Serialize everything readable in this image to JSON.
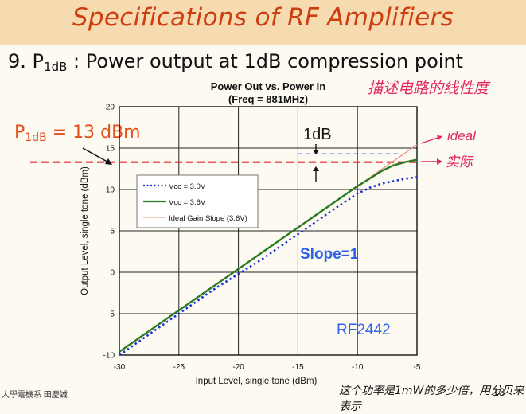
{
  "slide": {
    "title": "Specifications of RF Amplifiers",
    "heading_number": "9.",
    "heading_symbol": "P",
    "heading_sub": "1dB",
    "heading_text": ": Power output at 1dB compression point",
    "p1db_symbol": "P",
    "p1db_sub": "1dB",
    "p1db_value": "= 13 dBm",
    "note_top": "描述电路的线性度",
    "note_bottom": "这个功率是1mW的多少倍，用分贝来表示",
    "footer_left": "大學電機系 田慶誠",
    "page_number": "13"
  },
  "annotations": {
    "one_db": "1dB",
    "slope": "Slope=1",
    "part": "RF2442",
    "ideal": "ideal",
    "actual": "实际"
  },
  "colors": {
    "vcc30": "#1a2fd6",
    "vcc36": "#2a7a24",
    "ideal": "#e58c84",
    "red_dash": "#e12a2a",
    "blue_dash": "#2a4fe6",
    "accent": "#e6501c",
    "slope_text": "#2f62e8",
    "part_text": "#2f62e8"
  },
  "chart_data": {
    "type": "line",
    "title": "Power Out vs. Power In",
    "subtitle": "(Freq = 881MHz)",
    "xlabel": "Input Level, single tone (dBm)",
    "ylabel": "Output Level, single tone (dBm)",
    "xlim": [
      -30,
      -5
    ],
    "ylim": [
      -10,
      20
    ],
    "xticks": [
      -30,
      -25,
      -20,
      -15,
      -10,
      -5
    ],
    "yticks": [
      -10,
      -5,
      0,
      5,
      10,
      15,
      20
    ],
    "grid": true,
    "legend_position": "upper-left",
    "series": [
      {
        "name": "Vcc = 3.0V",
        "style": "dotted",
        "x": [
          -30,
          -28,
          -26,
          -24,
          -22,
          -20,
          -18,
          -16,
          -14,
          -12,
          -10,
          -9,
          -8,
          -7,
          -6,
          -5
        ],
        "y": [
          -10,
          -8,
          -6,
          -4,
          -2,
          -0.2,
          1.6,
          3.6,
          5.6,
          7.6,
          9.5,
          10.2,
          10.7,
          11.0,
          11.3,
          11.5
        ]
      },
      {
        "name": "Vcc = 3.6V",
        "style": "solid",
        "x": [
          -30,
          -28,
          -26,
          -24,
          -22,
          -20,
          -18,
          -16,
          -14,
          -12,
          -10,
          -9,
          -8,
          -7,
          -6,
          -5
        ],
        "y": [
          -9.6,
          -7.6,
          -5.6,
          -3.6,
          -1.6,
          0.4,
          2.4,
          4.4,
          6.4,
          8.4,
          10.4,
          11.3,
          12.2,
          12.9,
          13.3,
          13.6
        ]
      },
      {
        "name": "Ideal Gain Slope (3.6V)",
        "style": "thin",
        "x": [
          -30,
          -5
        ],
        "y": [
          -9.6,
          15.4
        ]
      }
    ],
    "reference_lines": [
      {
        "label": "P1dB",
        "y": 13.3,
        "x_from": -30,
        "x_to": -5,
        "style": "dashed-red"
      },
      {
        "label": "1dB above",
        "y": 14.3,
        "x_from": -15,
        "x_to": -6.5,
        "style": "dashed-blue"
      }
    ]
  }
}
